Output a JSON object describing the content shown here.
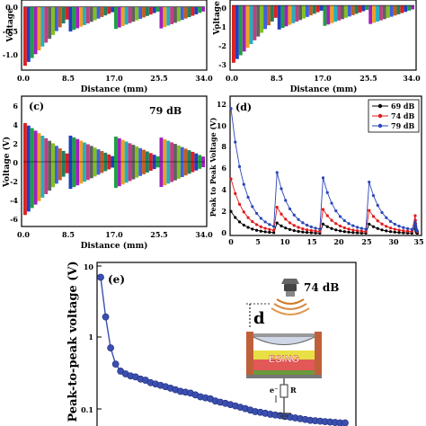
{
  "panels": {
    "a": {
      "ylabel": "Voltage",
      "xlabel": "Distance (mm)",
      "xticks": [
        "0.0",
        "8.5",
        "17.0",
        "25.5",
        "34.0"
      ],
      "yticks": [
        "0.0",
        "-0.5",
        "-1.0"
      ]
    },
    "b": {
      "ylabel": "Voltage",
      "xlabel": "Distance (mm)",
      "xticks": [
        "0.0",
        "8.5",
        "17.0",
        "25.5",
        "34.0"
      ],
      "yticks": [
        "0",
        "-1",
        "-2",
        "-3"
      ]
    },
    "c": {
      "tag": "(c)",
      "annotation": "79 dB",
      "ylabel": "Voltage (V)",
      "xlabel": "Distance (mm)",
      "xticks": [
        "0.0",
        "8.5",
        "17.0",
        "25.5",
        "34.0"
      ],
      "yticks": [
        "6",
        "4",
        "2",
        "0",
        "-2",
        "-4",
        "-6"
      ]
    },
    "d": {
      "tag": "(d)",
      "ylabel": "Peak to Peak Voltage (V)",
      "xticks": [
        "0",
        "5",
        "10",
        "15",
        "20",
        "25",
        "30",
        "35"
      ],
      "yticks": [
        "0",
        "2",
        "4",
        "6",
        "8",
        "10",
        "12"
      ],
      "legend": [
        "69 dB",
        "74 dB",
        "79 dB"
      ]
    },
    "e": {
      "tag": "(e)",
      "ylabel": "Peak-to-peak voltage (V)",
      "yticks": [
        "10",
        "1",
        "0.1"
      ],
      "annotation": "74 dB",
      "inset_d": "d",
      "inset_device": "ESING",
      "inset_electron": "e⁻",
      "inset_r": "R"
    }
  },
  "colors": {
    "s69": "#000000",
    "s74": "#e01818",
    "s79": "#2a45b8",
    "e_series": "#3a4fb0"
  },
  "chart_data": [
    {
      "type": "bar",
      "panel": "a",
      "xlabel": "Distance (mm)",
      "ylabel": "Voltage",
      "xlim": [
        0,
        34
      ],
      "ylim": [
        -1.2,
        0.1
      ],
      "description_of_marks": "multicolor voltage bars, envelope decaying within each 8.5 mm segment",
      "segment_peaks": [
        -1.15,
        -0.48,
        -0.43,
        -0.42
      ]
    },
    {
      "type": "bar",
      "panel": "b",
      "xlabel": "Distance (mm)",
      "ylabel": "Voltage",
      "xlim": [
        0,
        34
      ],
      "ylim": [
        -3.4,
        0.2
      ],
      "segment_peaks": [
        -3.1,
        -1.3,
        -1.1,
        -1.0
      ]
    },
    {
      "type": "bar",
      "panel": "c",
      "xlabel": "Distance (mm)",
      "ylabel": "Voltage (V)",
      "xlim": [
        0,
        34
      ],
      "ylim": [
        -6.5,
        6.5
      ],
      "segment_peaks_pos": [
        4.0,
        2.7,
        2.6,
        2.5
      ],
      "segment_peaks_neg": [
        -5.5,
        -2.8,
        -2.7,
        -2.6
      ]
    },
    {
      "type": "line",
      "panel": "d",
      "ylabel": "Peak to Peak Voltage (V)",
      "xlim": [
        0,
        35
      ],
      "ylim": [
        0,
        13
      ],
      "series": [
        {
          "name": "69 dB",
          "peaks": [
            2.2,
            1.1,
            1.0,
            1.0,
            0.9
          ],
          "valley": 0.1
        },
        {
          "name": "74 dB",
          "peaks": [
            5.3,
            2.6,
            2.4,
            2.3,
            1.8
          ],
          "valley": 0.2
        },
        {
          "name": "79 dB",
          "peaks": [
            12.0,
            5.9,
            5.4,
            5.0,
            1.2
          ],
          "valley": 0.3
        }
      ],
      "peak_x": [
        0,
        8.5,
        17,
        25.5,
        34
      ]
    },
    {
      "type": "scatter",
      "panel": "e",
      "ylabel": "Peak-to-peak voltage (V)",
      "yscale": "log",
      "ylim": [
        0.06,
        10
      ],
      "series": [
        {
          "values": [
            7.0,
            2.0,
            0.75,
            0.45,
            0.36,
            0.33,
            0.31,
            0.3,
            0.28,
            0.27,
            0.25,
            0.24,
            0.23,
            0.22,
            0.21,
            0.2,
            0.19,
            0.185,
            0.18,
            0.17,
            0.16,
            0.155,
            0.15,
            0.14,
            0.135,
            0.13,
            0.125,
            0.12,
            0.115,
            0.11,
            0.105,
            0.1,
            0.098,
            0.095,
            0.092,
            0.09,
            0.088,
            0.086,
            0.084,
            0.082,
            0.08,
            0.078,
            0.076,
            0.075,
            0.074,
            0.073,
            0.072,
            0.071,
            0.07,
            0.07
          ]
        }
      ]
    }
  ]
}
